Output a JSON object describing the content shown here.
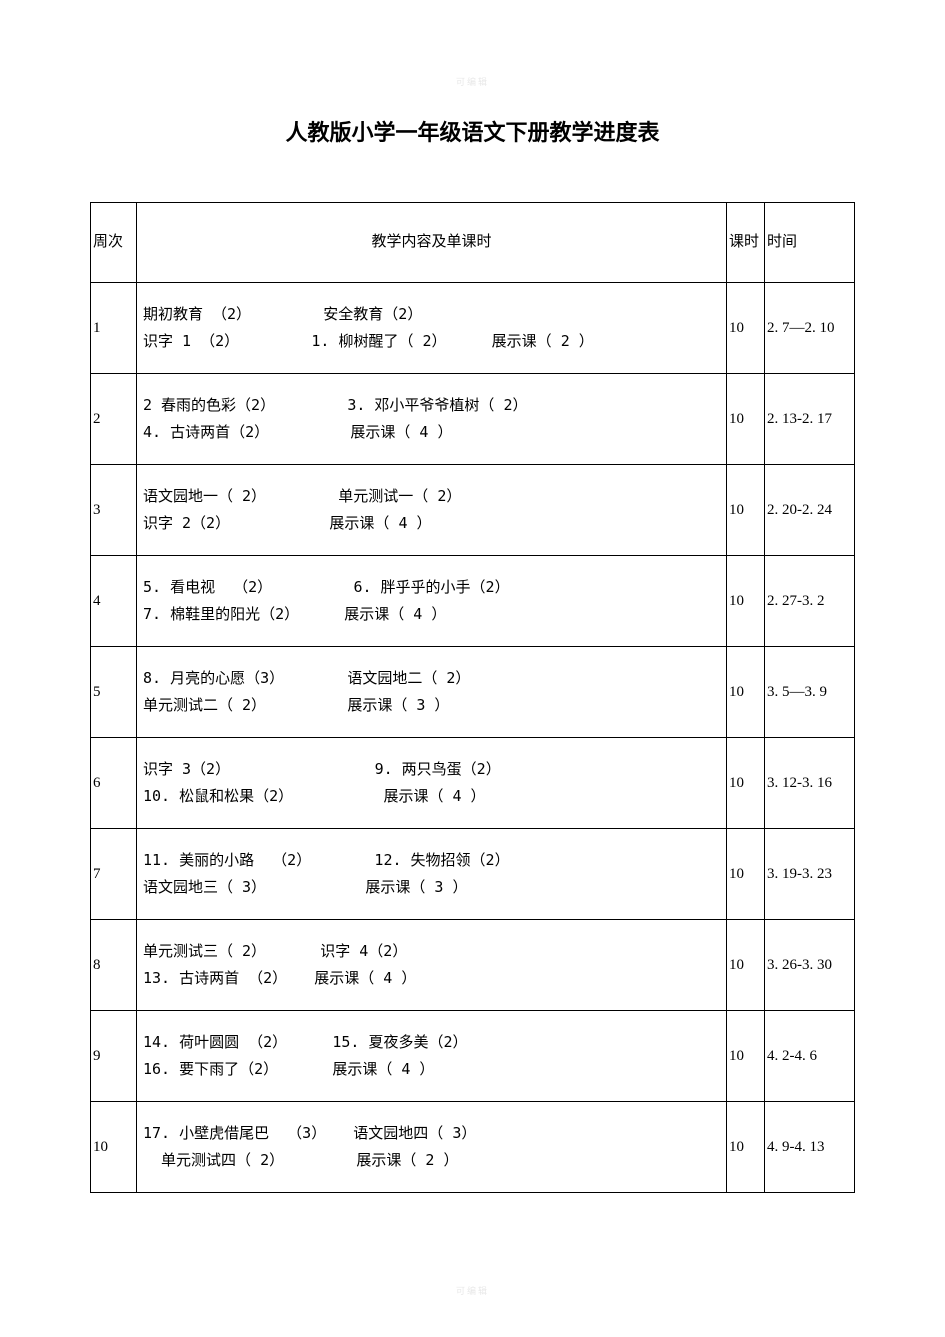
{
  "watermark": "可编辑",
  "title": "人教版小学一年级语文下册教学进度表",
  "table": {
    "headers": {
      "week": "周次",
      "content": "教学内容及单课时",
      "hours": "课时",
      "time": "时间"
    },
    "rows": [
      {
        "week": "1",
        "content_lines": [
          "期初教育 （2）        安全教育（2）",
          "识字 1 （2）        1. 柳树醒了（ 2）     展示课（ 2 ）"
        ],
        "hours": "10",
        "time": "2. 7—2. 10"
      },
      {
        "week": "2",
        "content_lines": [
          "2 春雨的色彩（2）        3. 邓小平爷爷植树（ 2）",
          "4. 古诗两首（2）         展示课（ 4 ）"
        ],
        "hours": "10",
        "time": "2. 13-2. 17"
      },
      {
        "week": "3",
        "content_lines": [
          "语文园地一（ 2）        单元测试一（ 2）",
          "识字 2（2）           展示课（ 4 ）"
        ],
        "hours": "10",
        "time": "2. 20-2. 24"
      },
      {
        "week": "4",
        "content_lines": [
          "5. 看电视  （2）         6. 胖乎乎的小手（2）",
          "7. 棉鞋里的阳光（2）     展示课（ 4 ）"
        ],
        "hours": "10",
        "time": "2. 27-3. 2"
      },
      {
        "week": "5",
        "content_lines": [
          "8. 月亮的心愿（3）       语文园地二（ 2）",
          "单元测试二（ 2）         展示课（ 3 ）"
        ],
        "hours": "10",
        "time": "3. 5—3. 9"
      },
      {
        "week": "6",
        "content_lines": [
          "识字 3（2）                9. 两只鸟蛋（2）",
          "10. 松鼠和松果（2）          展示课（ 4 ）"
        ],
        "hours": "10",
        "time": "3. 12-3. 16"
      },
      {
        "week": "7",
        "content_lines": [
          "11. 美丽的小路  （2）       12. 失物招领（2）",
          "语文园地三（ 3）           展示课（ 3 ）"
        ],
        "hours": "10",
        "time": "3. 19-3. 23"
      },
      {
        "week": "8",
        "content_lines": [
          "单元测试三（ 2）      识字 4（2）",
          "13. 古诗两首 （2）   展示课（ 4 ）"
        ],
        "hours": "10",
        "time": "3. 26-3. 30"
      },
      {
        "week": "9",
        "content_lines": [
          "14. 荷叶圆圆 （2）     15. 夏夜多美（2）",
          "16. 要下雨了（2）      展示课（ 4 ）"
        ],
        "hours": "10",
        "time": "4. 2-4. 6"
      },
      {
        "week": "10",
        "content_lines": [
          "17. 小壁虎借尾巴  （3）   语文园地四（ 3）",
          "  单元测试四（ 2）        展示课（ 2 ）"
        ],
        "hours": "10",
        "time": "4. 9-4. 13"
      }
    ]
  },
  "colors": {
    "background": "#ffffff",
    "text": "#000000",
    "border": "#000000",
    "watermark": "#e8e8e8"
  },
  "typography": {
    "title_fontsize": 22,
    "body_fontsize": 15,
    "font_family": "SimSun"
  }
}
